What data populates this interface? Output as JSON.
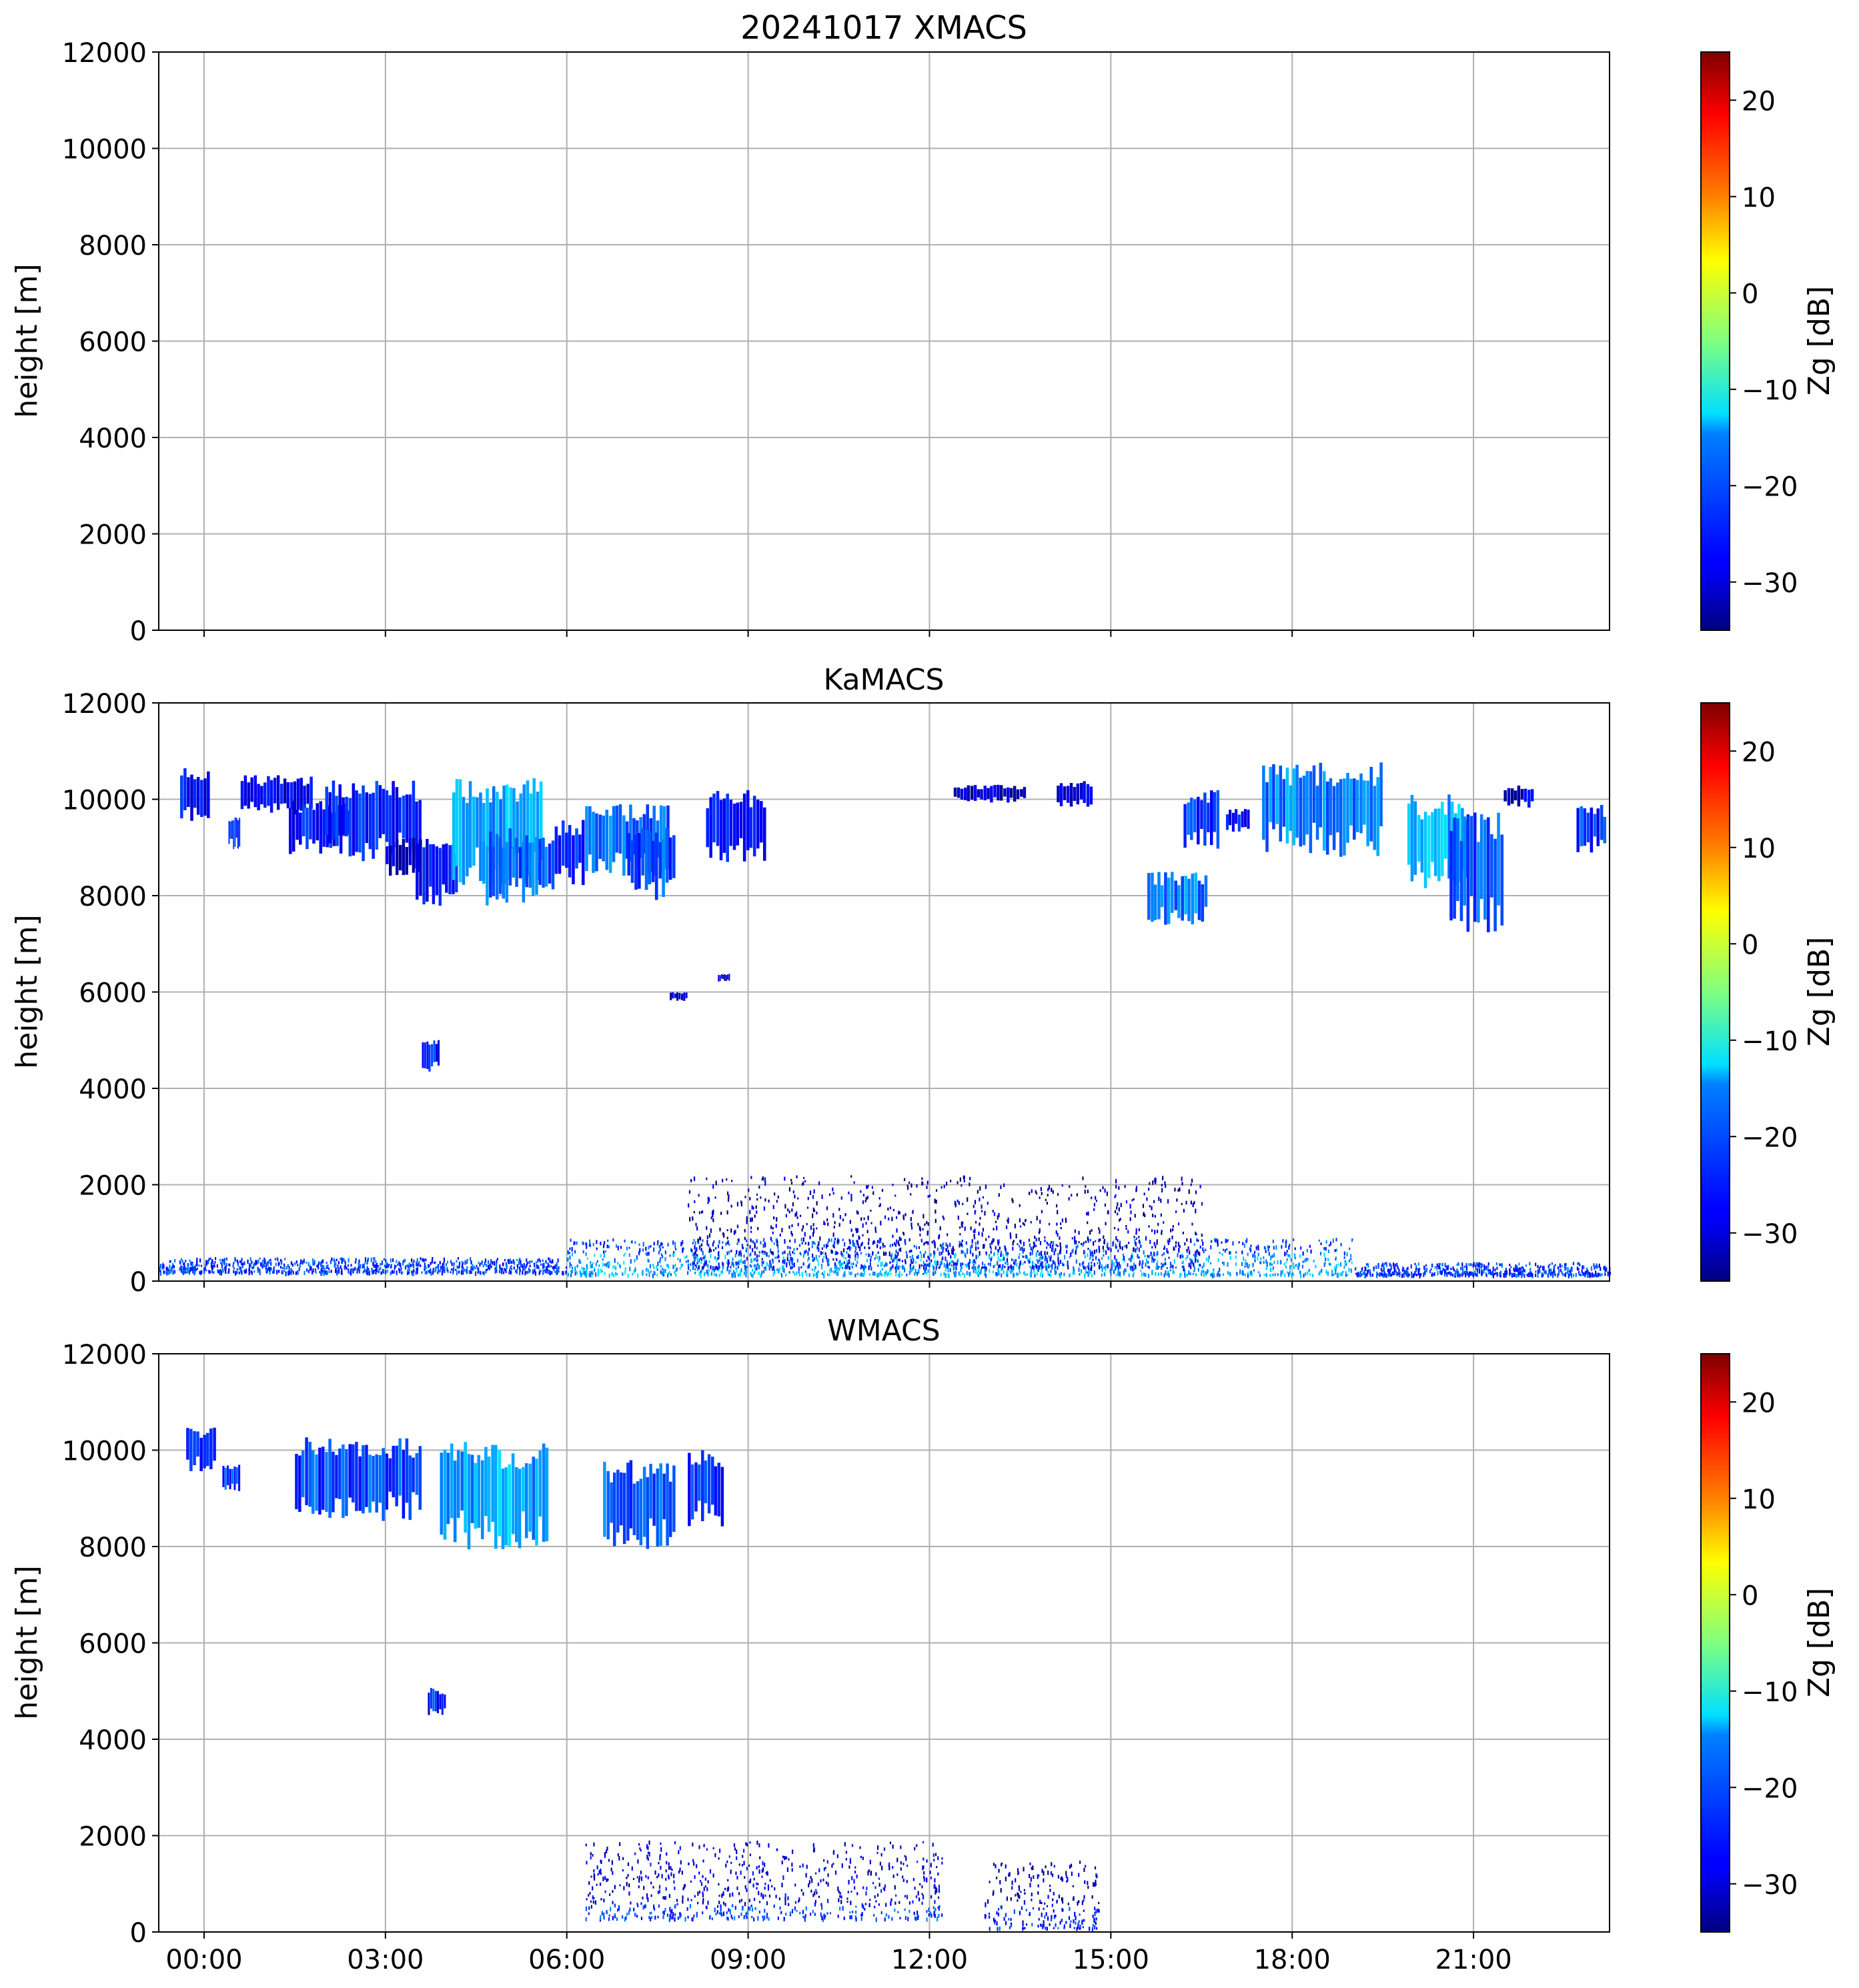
{
  "chart_data": [
    {
      "type": "heatmap",
      "title": "20241017 XMACS",
      "ylabel": "height [m]",
      "ylim": [
        0,
        12000
      ],
      "yticks": [
        "0",
        "2000",
        "4000",
        "6000",
        "8000",
        "10000",
        "12000"
      ],
      "xlim_hours": [
        -0.75,
        23.25
      ],
      "grid": true,
      "colorbar": {
        "label": "Zg [dB]",
        "range": [
          -35,
          25
        ],
        "ticks": [
          "−30",
          "−20",
          "−10",
          "0",
          "10",
          "20"
        ],
        "colormap": "jet"
      },
      "echoes": []
    },
    {
      "type": "heatmap",
      "title": "KaMACS",
      "ylabel": "height [m]",
      "ylim": [
        0,
        12000
      ],
      "yticks": [
        "0",
        "2000",
        "4000",
        "6000",
        "8000",
        "10000",
        "12000"
      ],
      "xlim_hours": [
        -0.75,
        23.25
      ],
      "grid": true,
      "colorbar": {
        "label": "Zg [dB]",
        "range": [
          -35,
          25
        ],
        "ticks": [
          "−30",
          "−20",
          "−10",
          "0",
          "10",
          "20"
        ],
        "colormap": "jet"
      },
      "echoes": [
        {
          "t0": -0.4,
          "t1": 0.1,
          "h0": 9400,
          "h1": 10700,
          "dbz": -28
        },
        {
          "t0": 0.4,
          "t1": 0.6,
          "h0": 8900,
          "h1": 9700,
          "dbz": -22
        },
        {
          "t0": 0.6,
          "t1": 1.8,
          "h0": 9600,
          "h1": 10500,
          "dbz": -29
        },
        {
          "t0": 1.4,
          "t1": 2.4,
          "h0": 8800,
          "h1": 10000,
          "dbz": -27
        },
        {
          "t0": 2.0,
          "t1": 3.6,
          "h0": 8600,
          "h1": 10400,
          "dbz": -26
        },
        {
          "t0": 3.0,
          "t1": 3.6,
          "h0": 8300,
          "h1": 9200,
          "dbz": -30
        },
        {
          "t0": 3.5,
          "t1": 4.2,
          "h0": 7700,
          "h1": 9200,
          "dbz": -28
        },
        {
          "t0": 4.1,
          "t1": 5.6,
          "h0": 8100,
          "h1": 10500,
          "dbz": -18
        },
        {
          "t0": 4.6,
          "t1": 5.8,
          "h0": 7700,
          "h1": 9400,
          "dbz": -22
        },
        {
          "t0": 5.8,
          "t1": 6.3,
          "h0": 8100,
          "h1": 9600,
          "dbz": -25
        },
        {
          "t0": 3.6,
          "t1": 3.9,
          "h0": 4300,
          "h1": 5100,
          "dbz": -26
        },
        {
          "t0": 6.3,
          "t1": 7.7,
          "h0": 8300,
          "h1": 9900,
          "dbz": -21
        },
        {
          "t0": 7.0,
          "t1": 7.8,
          "h0": 7800,
          "h1": 9500,
          "dbz": -23
        },
        {
          "t0": 7.7,
          "t1": 8.0,
          "h0": 5800,
          "h1": 6000,
          "dbz": -30
        },
        {
          "t0": 8.5,
          "t1": 8.7,
          "h0": 6200,
          "h1": 6400,
          "dbz": -30
        },
        {
          "t0": 8.3,
          "t1": 9.3,
          "h0": 8600,
          "h1": 10200,
          "dbz": -28
        },
        {
          "t0": 12.4,
          "t1": 13.6,
          "h0": 9900,
          "h1": 10300,
          "dbz": -31
        },
        {
          "t0": 14.1,
          "t1": 14.7,
          "h0": 9800,
          "h1": 10400,
          "dbz": -30
        },
        {
          "t0": 15.6,
          "t1": 16.6,
          "h0": 7300,
          "h1": 8500,
          "dbz": -20
        },
        {
          "t0": 16.2,
          "t1": 16.8,
          "h0": 8900,
          "h1": 10200,
          "dbz": -24
        },
        {
          "t0": 16.9,
          "t1": 17.3,
          "h0": 9300,
          "h1": 9800,
          "dbz": -27
        },
        {
          "t0": 17.5,
          "t1": 19.5,
          "h0": 8700,
          "h1": 10800,
          "dbz": -20
        },
        {
          "t0": 19.9,
          "t1": 20.9,
          "h0": 8000,
          "h1": 10100,
          "dbz": -17
        },
        {
          "t0": 20.6,
          "t1": 21.5,
          "h0": 7000,
          "h1": 9800,
          "dbz": -22
        },
        {
          "t0": 21.5,
          "t1": 22.0,
          "h0": 9800,
          "h1": 10300,
          "dbz": -30
        },
        {
          "t0": 22.7,
          "t1": 23.2,
          "h0": 8800,
          "h1": 9900,
          "dbz": -25
        }
      ],
      "boundary_layer": [
        {
          "t0": -0.75,
          "t1": 6.0,
          "h0": 200,
          "h1": 500,
          "dbz": -30
        },
        {
          "t0": 6.0,
          "t1": 19.0,
          "h0": 150,
          "h1": 900,
          "dbz": -24
        },
        {
          "t0": 8.0,
          "t1": 16.5,
          "h0": 300,
          "h1": 2200,
          "dbz": -32
        },
        {
          "t0": 19.0,
          "t1": 23.25,
          "h0": 150,
          "h1": 400,
          "dbz": -30
        }
      ]
    },
    {
      "type": "heatmap",
      "title": "WMACS",
      "ylabel": "height [m]",
      "ylim": [
        0,
        12000
      ],
      "yticks": [
        "0",
        "2000",
        "4000",
        "6000",
        "8000",
        "10000",
        "12000"
      ],
      "xlim_hours": [
        -0.75,
        23.25
      ],
      "xticks": [
        "00:00",
        "03:00",
        "06:00",
        "09:00",
        "12:00",
        "15:00",
        "18:00",
        "21:00"
      ],
      "grid": true,
      "colorbar": {
        "label": "Zg [dB]",
        "range": [
          -35,
          25
        ],
        "ticks": [
          "−30",
          "−20",
          "−10",
          "0",
          "10",
          "20"
        ],
        "colormap": "jet"
      },
      "echoes": [
        {
          "t0": -0.3,
          "t1": 0.2,
          "h0": 9500,
          "h1": 10500,
          "dbz": -24
        },
        {
          "t0": 0.3,
          "t1": 0.6,
          "h0": 9100,
          "h1": 9700,
          "dbz": -24
        },
        {
          "t0": 1.5,
          "t1": 3.6,
          "h0": 8400,
          "h1": 10300,
          "dbz": -23
        },
        {
          "t0": 3.9,
          "t1": 5.7,
          "h0": 7800,
          "h1": 10200,
          "dbz": -18
        },
        {
          "t0": 6.6,
          "t1": 7.8,
          "h0": 7800,
          "h1": 9800,
          "dbz": -22
        },
        {
          "t0": 8.0,
          "t1": 8.6,
          "h0": 8300,
          "h1": 10000,
          "dbz": -25
        },
        {
          "t0": 3.7,
          "t1": 4.0,
          "h0": 4400,
          "h1": 5100,
          "dbz": -26
        }
      ],
      "boundary_layer": [
        {
          "t0": 6.3,
          "t1": 12.2,
          "h0": 300,
          "h1": 1900,
          "dbz": -30
        },
        {
          "t0": 12.9,
          "t1": 14.8,
          "h0": 100,
          "h1": 1500,
          "dbz": -32
        }
      ]
    }
  ]
}
